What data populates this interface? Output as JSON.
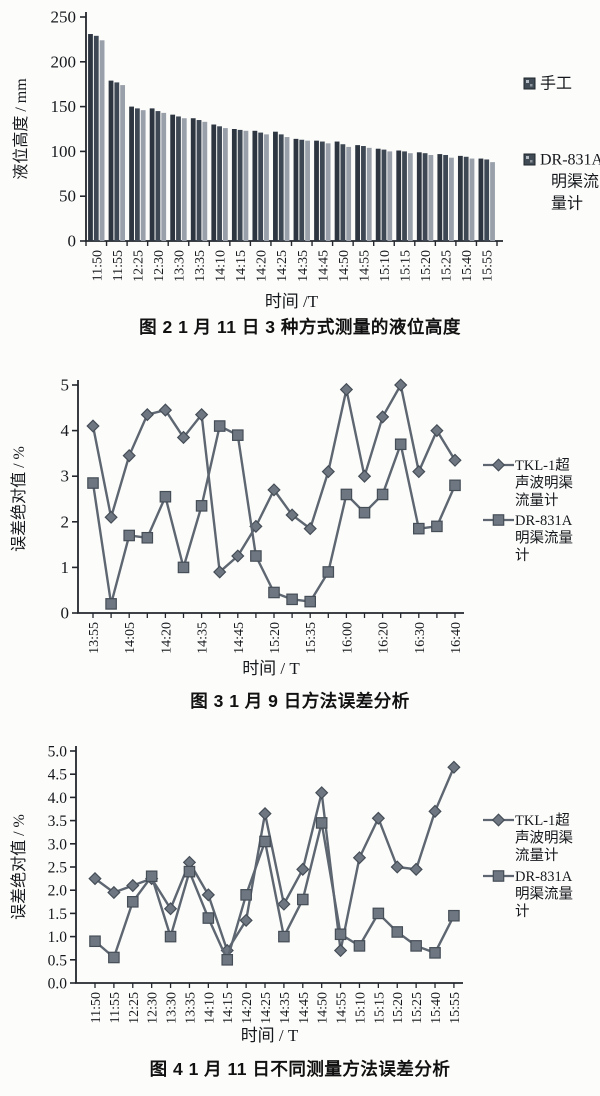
{
  "page": {
    "background_color": "#fcfcfa",
    "text_color": "#1a1a1a",
    "line_color": "#5d6671",
    "marker_fill": "#6e7781",
    "marker_edge": "#454d57",
    "axis_color": "#23272d"
  },
  "chart_data": [
    {
      "type": "bar",
      "title": "图 2  1 月 11 日 3 种方式测量的液位高度",
      "xlabel": "时间 /T",
      "ylabel": "液位高度 / mm",
      "ylim": [
        0,
        250
      ],
      "y_ticks": [
        "0",
        "50",
        "100",
        "150",
        "200",
        "250"
      ],
      "grid": "off",
      "legend_position": "right",
      "categories": [
        "11:50",
        "11:55",
        "12:25",
        "12:30",
        "13:30",
        "13:35",
        "14:10",
        "14:15",
        "14:20",
        "14:25",
        "14:35",
        "14:45",
        "14:50",
        "14:55",
        "15:10",
        "15:15",
        "15:20",
        "15:25",
        "15:40",
        "15:55"
      ],
      "series": [
        {
          "name": "手工",
          "color": "#2c3540",
          "values": [
            231,
            179,
            150,
            148,
            141,
            137,
            130,
            125,
            123,
            122,
            114,
            112,
            111,
            107,
            103,
            101,
            99,
            97,
            95,
            92
          ]
        },
        {
          "name": "",
          "color": "#3e4854",
          "values": [
            229,
            177,
            148,
            145,
            139,
            135,
            128,
            124,
            121,
            119,
            113,
            111,
            108,
            106,
            102,
            100,
            98,
            96,
            94,
            91
          ]
        },
        {
          "name": "DR-831A 明渠流量计",
          "color": "#99a0a9",
          "values": [
            224,
            174,
            146,
            143,
            137,
            133,
            126,
            123,
            119,
            116,
            112,
            109,
            105,
            104,
            100,
            98,
            96,
            93,
            92,
            88
          ]
        }
      ],
      "legend": [
        {
          "label_lines": [
            "手工"
          ]
        },
        {
          "label_lines": [
            "DR-831A",
            "明渠流",
            "量计"
          ]
        }
      ]
    },
    {
      "type": "line",
      "title": "图 3  1 月 9 日方法误差分析",
      "xlabel": "时间 / T",
      "ylabel": "误差绝对值 / %",
      "ylim": [
        0,
        5
      ],
      "y_ticks": [
        "0",
        "1",
        "2",
        "3",
        "4",
        "5"
      ],
      "grid": "off",
      "legend_position": "right",
      "x_tick_labels": [
        "13:55",
        "",
        "14:05",
        "",
        "14:20",
        "",
        "14:35",
        "",
        "14:45",
        "",
        "15:20",
        "",
        "15:35",
        "",
        "16:00",
        "",
        "16:20",
        "",
        "16:30",
        "",
        "16:40"
      ],
      "series": [
        {
          "name": "TKL-1超声波明渠流量计",
          "marker": "diamond",
          "values": [
            4.1,
            2.1,
            3.45,
            4.35,
            4.45,
            3.85,
            4.35,
            0.9,
            1.25,
            1.9,
            2.7,
            2.15,
            1.85,
            3.1,
            4.9,
            3.0,
            4.3,
            5.0,
            3.1,
            4.0,
            3.35
          ]
        },
        {
          "name": "DR-831A明渠流量计",
          "marker": "square",
          "values": [
            2.85,
            0.2,
            1.7,
            1.65,
            2.55,
            1.0,
            2.35,
            4.1,
            3.9,
            1.25,
            0.45,
            0.3,
            0.25,
            0.9,
            2.6,
            2.2,
            2.6,
            3.7,
            1.85,
            1.9,
            2.8
          ]
        }
      ],
      "legend": [
        {
          "label_lines": [
            "TKL-1超",
            "声波明渠",
            "流量计"
          ],
          "marker": "diamond"
        },
        {
          "label_lines": [
            "DR-831A",
            "明渠流量",
            "计"
          ],
          "marker": "square"
        }
      ]
    },
    {
      "type": "line",
      "title": "图 4  1 月 11 日不同测量方法误差分析",
      "xlabel": "时间 / T",
      "ylabel": "误差绝对值 / %",
      "ylim": [
        0,
        5
      ],
      "y_ticks": [
        "0.0",
        "0.5",
        "1.0",
        "1.5",
        "2.0",
        "2.5",
        "3.0",
        "3.5",
        "4.0",
        "4.5",
        "5.0"
      ],
      "grid": "off",
      "legend_position": "right",
      "x_tick_labels": [
        "11:50",
        "11:55",
        "12:25",
        "12:30",
        "13:30",
        "13:35",
        "14:10",
        "14:15",
        "14:20",
        "14:25",
        "14:35",
        "14:45",
        "14:50",
        "14:55",
        "15:10",
        "15:15",
        "15:20",
        "15:25",
        "15:40",
        "15:55"
      ],
      "series": [
        {
          "name": "TKL-1超声波明渠流量计",
          "marker": "diamond",
          "values": [
            2.25,
            1.95,
            2.1,
            2.25,
            1.6,
            2.6,
            1.9,
            0.7,
            1.35,
            3.65,
            1.7,
            2.45,
            4.1,
            0.7,
            2.7,
            3.55,
            2.5,
            2.45,
            3.7,
            4.65
          ]
        },
        {
          "name": "DR-831A明渠流量计",
          "marker": "square",
          "values": [
            0.9,
            0.55,
            1.75,
            2.3,
            1.0,
            2.4,
            1.4,
            0.5,
            1.9,
            3.05,
            1.0,
            1.8,
            3.45,
            1.05,
            0.8,
            1.5,
            1.1,
            0.8,
            0.65,
            1.45
          ]
        }
      ],
      "legend": [
        {
          "label_lines": [
            "TKL-1超",
            "声波明渠",
            "流量计"
          ],
          "marker": "diamond"
        },
        {
          "label_lines": [
            "DR-831A",
            "明渠流量",
            "计"
          ],
          "marker": "square"
        }
      ]
    }
  ]
}
